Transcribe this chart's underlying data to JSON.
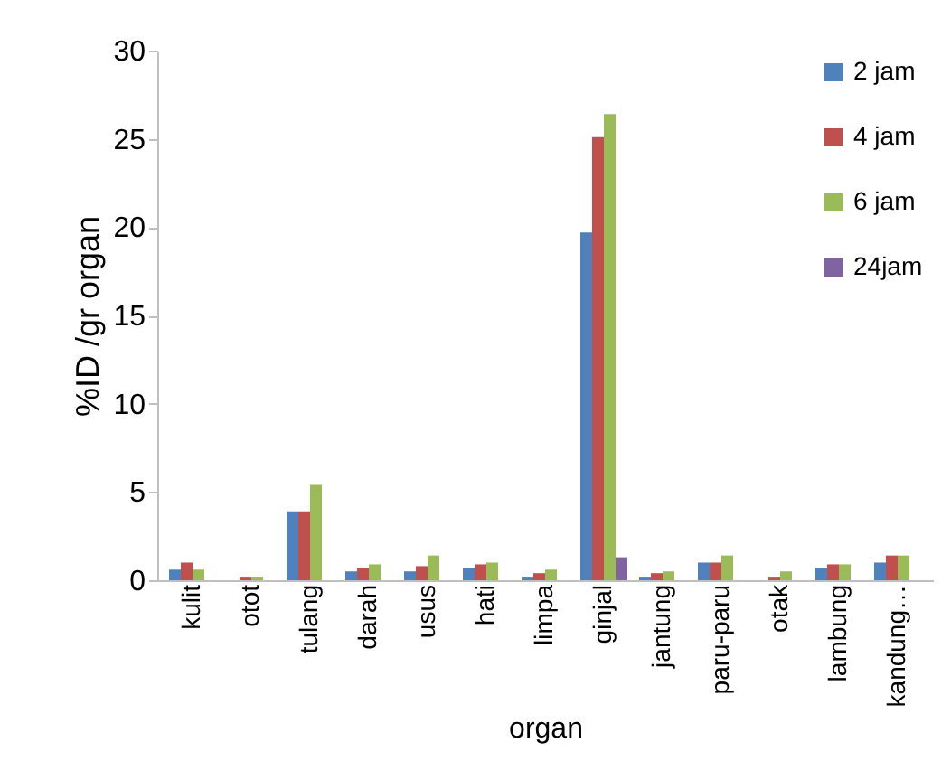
{
  "chart_data": {
    "type": "bar",
    "xlabel": "organ",
    "ylabel": "%ID /gr organ",
    "categories": [
      "kulit",
      "otot",
      "tulang",
      "darah",
      "usus",
      "hati",
      "limpa",
      "ginjal",
      "jantung",
      "paru-paru",
      "otak",
      "lambung",
      "kandung…"
    ],
    "series": [
      {
        "name": "2 jam",
        "color": "#4f81bd",
        "values": [
          0.6,
          0,
          3.9,
          0.5,
          0.5,
          0.7,
          0.2,
          19.7,
          0.2,
          1.0,
          0,
          0.7,
          1.0
        ]
      },
      {
        "name": "4 jam",
        "color": "#c0504d",
        "values": [
          1.0,
          0.2,
          3.9,
          0.7,
          0.8,
          0.9,
          0.4,
          25.1,
          0.4,
          1.0,
          0.2,
          0.9,
          1.4
        ]
      },
      {
        "name": "6 jam",
        "color": "#9bbb59",
        "values": [
          0.6,
          0.2,
          5.4,
          0.9,
          1.4,
          1.0,
          0.6,
          26.4,
          0.5,
          1.4,
          0.5,
          0.9,
          1.4
        ]
      },
      {
        "name": "24jam",
        "color": "#8064a2",
        "values": [
          null,
          null,
          null,
          null,
          null,
          null,
          null,
          1.3,
          null,
          null,
          null,
          null,
          null
        ]
      }
    ],
    "ylim": [
      0,
      30
    ],
    "yticks": [
      0,
      5,
      10,
      15,
      20,
      25,
      30
    ],
    "grid": false,
    "legend": "top right"
  }
}
